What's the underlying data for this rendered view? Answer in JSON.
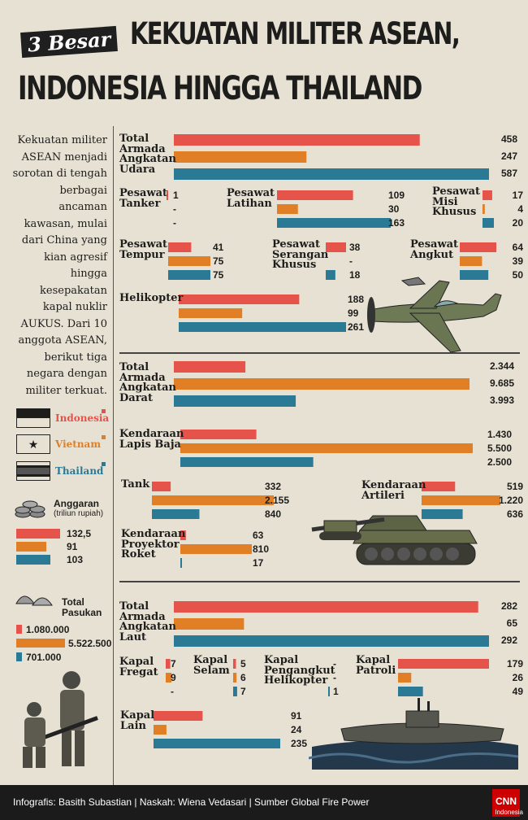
{
  "header": {
    "tag": "3 Besar",
    "title_line1": "KEKUATAN MILITER ASEAN,",
    "title_line2": "INDONESIA HINGGA THAILAND"
  },
  "intro": "Kekuatan militer ASEAN menjadi sorotan di tengah berbagai ancaman kawasan, mulai dari China yang kian agresif hingga kesepakatan kapal nuklir AUKUS. Dari 10 anggota ASEAN, berikut tiga negara dengan militer terkuat.",
  "colors": {
    "indonesia": "#e5534b",
    "vietnam": "#e07f26",
    "thailand": "#2a7a96",
    "ink": "#1d1d1b",
    "bg": "#e7e1d4"
  },
  "legend": [
    {
      "name": "Indonesia",
      "color": "#e5534b"
    },
    {
      "name": "Vietnam",
      "color": "#e07f26"
    },
    {
      "name": "Thailand",
      "color": "#2a7a96"
    }
  ],
  "anggaran": {
    "label": "Anggaran",
    "unit": "(triliun rupiah)",
    "values": [
      "132,5",
      "91",
      "103"
    ]
  },
  "pasukan": {
    "label_1": "Total",
    "label_2": "Pasukan",
    "values": [
      "1.080.000",
      "5.522.500",
      "701.000"
    ]
  },
  "chart_data": [
    {
      "type": "bar",
      "group": "udara",
      "title": "Total Armada Angkatan Udara",
      "labels": [
        "458",
        "247",
        "587"
      ],
      "values": [
        458,
        247,
        587
      ]
    },
    {
      "type": "bar",
      "group": "udara",
      "title": "Pesawat Tanker",
      "labels": [
        "1",
        "-",
        "-"
      ],
      "values": [
        1,
        0,
        0
      ]
    },
    {
      "type": "bar",
      "group": "udara",
      "title": "Pesawat Latihan",
      "labels": [
        "109",
        "30",
        "163"
      ],
      "values": [
        109,
        30,
        163
      ]
    },
    {
      "type": "bar",
      "group": "udara",
      "title": "Pesawat Misi Khusus",
      "labels": [
        "17",
        "4",
        "20"
      ],
      "values": [
        17,
        4,
        20
      ]
    },
    {
      "type": "bar",
      "group": "udara",
      "title": "Pesawat Tempur",
      "labels": [
        "41",
        "75",
        "75"
      ],
      "values": [
        41,
        75,
        75
      ]
    },
    {
      "type": "bar",
      "group": "udara",
      "title": "Pesawat Serangan Khusus",
      "labels": [
        "38",
        "-",
        "18"
      ],
      "values": [
        38,
        0,
        18
      ]
    },
    {
      "type": "bar",
      "group": "udara",
      "title": "Pesawat Angkut",
      "labels": [
        "64",
        "39",
        "50"
      ],
      "values": [
        64,
        39,
        50
      ]
    },
    {
      "type": "bar",
      "group": "udara",
      "title": "Helikopter",
      "labels": [
        "188",
        "99",
        "261"
      ],
      "values": [
        188,
        99,
        261
      ]
    },
    {
      "type": "bar",
      "group": "darat",
      "title": "Total Armada Angkatan Darat",
      "labels": [
        "2.344",
        "9.685",
        "3.993"
      ],
      "values": [
        2344,
        9685,
        3993
      ]
    },
    {
      "type": "bar",
      "group": "darat",
      "title": "Kendaraan Lapis Baja",
      "labels": [
        "1.430",
        "5.500",
        "2.500"
      ],
      "values": [
        1430,
        5500,
        2500
      ]
    },
    {
      "type": "bar",
      "group": "darat",
      "title": "Tank",
      "labels": [
        "332",
        "2.155",
        "840"
      ],
      "values": [
        332,
        2155,
        840
      ]
    },
    {
      "type": "bar",
      "group": "darat",
      "title": "Kendaraan Artileri",
      "labels": [
        "519",
        "1.220",
        "636"
      ],
      "values": [
        519,
        1220,
        636
      ]
    },
    {
      "type": "bar",
      "group": "darat",
      "title": "Kendaraan Proyektor Roket",
      "labels": [
        "63",
        "810",
        "17"
      ],
      "values": [
        63,
        810,
        17
      ]
    },
    {
      "type": "bar",
      "group": "laut",
      "title": "Total Armada Angkatan Laut",
      "labels": [
        "282",
        "65",
        "292"
      ],
      "values": [
        282,
        65,
        292
      ]
    },
    {
      "type": "bar",
      "group": "laut",
      "title": "Kapal Fregat",
      "labels": [
        "7",
        "9",
        "-"
      ],
      "values": [
        7,
        9,
        0
      ]
    },
    {
      "type": "bar",
      "group": "laut",
      "title": "Kapal Selam",
      "labels": [
        "5",
        "6",
        "7"
      ],
      "values": [
        5,
        6,
        7
      ]
    },
    {
      "type": "bar",
      "group": "laut",
      "title": "Kapal Pengangkut Helikopter",
      "labels": [
        "-",
        "-",
        "1"
      ],
      "values": [
        0,
        0,
        1
      ]
    },
    {
      "type": "bar",
      "group": "laut",
      "title": "Kapal Patroli",
      "labels": [
        "179",
        "26",
        "49"
      ],
      "values": [
        179,
        26,
        49
      ]
    },
    {
      "type": "bar",
      "group": "laut",
      "title": "Kapal Lain",
      "labels": [
        "91",
        "24",
        "235"
      ],
      "values": [
        91,
        24,
        235
      ]
    }
  ],
  "footer": {
    "credits": "Infografis: Basith Subastian | Naskah: Wiena Vedasari | Sumber Global Fire Power",
    "logo": "CNN",
    "logo_sub": "Indonesia"
  }
}
